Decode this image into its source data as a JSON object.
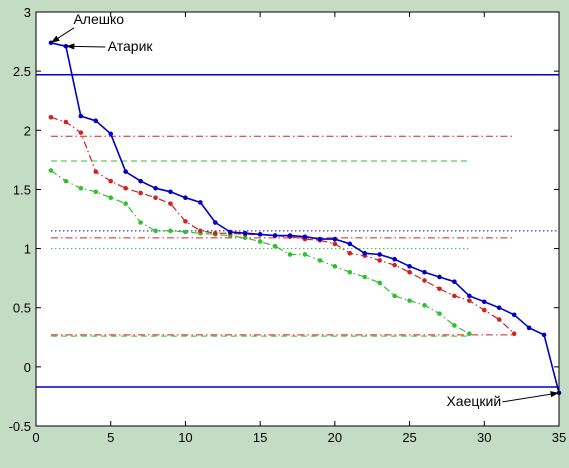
{
  "chart_data": {
    "type": "line",
    "title": "",
    "xlabel": "",
    "ylabel": "",
    "xlim": [
      0,
      35
    ],
    "ylim": [
      -0.5,
      3
    ],
    "xticks": [
      0,
      5,
      10,
      15,
      20,
      25,
      30,
      35
    ],
    "yticks": [
      -0.5,
      0,
      0.5,
      1,
      1.5,
      2,
      2.5,
      3
    ],
    "xtick_labels": [
      "0",
      "5",
      "10",
      "15",
      "20",
      "25",
      "30",
      "35"
    ],
    "ytick_labels": [
      "-0.5",
      "0",
      "0.5",
      "1",
      "1.5",
      "2",
      "2.5",
      "3"
    ],
    "grid": false,
    "series": [
      {
        "color": "#0000c8",
        "style": "solid",
        "marker": "dot",
        "x": [
          1,
          2,
          3,
          4,
          5,
          6,
          7,
          8,
          9,
          10,
          11,
          12,
          13,
          14,
          15,
          16,
          17,
          18,
          19,
          20,
          21,
          22,
          23,
          24,
          25,
          26,
          27,
          28,
          29,
          30,
          31,
          32,
          33,
          34,
          35
        ],
        "y": [
          2.74,
          2.71,
          2.12,
          2.08,
          1.97,
          1.65,
          1.57,
          1.51,
          1.48,
          1.43,
          1.39,
          1.22,
          1.14,
          1.13,
          1.12,
          1.11,
          1.11,
          1.1,
          1.08,
          1.08,
          1.04,
          0.96,
          0.95,
          0.91,
          0.85,
          0.8,
          0.76,
          0.72,
          0.6,
          0.55,
          0.5,
          0.44,
          0.33,
          0.27,
          -0.22
        ]
      },
      {
        "color": "#d42020",
        "style": "dashdot",
        "marker": "dot",
        "x": [
          1,
          2,
          3,
          4,
          5,
          6,
          7,
          8,
          9,
          10,
          11,
          12,
          13,
          14,
          15,
          16,
          17,
          18,
          19,
          20,
          21,
          22,
          23,
          24,
          25,
          26,
          27,
          28,
          29,
          30,
          31,
          32
        ],
        "y": [
          2.11,
          2.07,
          1.98,
          1.65,
          1.57,
          1.51,
          1.47,
          1.43,
          1.38,
          1.23,
          1.15,
          1.13,
          1.13,
          1.12,
          1.12,
          1.11,
          1.1,
          1.08,
          1.07,
          1.04,
          0.96,
          0.94,
          0.9,
          0.86,
          0.8,
          0.73,
          0.66,
          0.6,
          0.56,
          0.48,
          0.4,
          0.28
        ]
      },
      {
        "color": "#30c030",
        "style": "dashdot",
        "marker": "dot",
        "x": [
          1,
          2,
          3,
          4,
          5,
          6,
          7,
          8,
          9,
          10,
          11,
          12,
          13,
          14,
          15,
          16,
          17,
          18,
          19,
          20,
          21,
          22,
          23,
          24,
          25,
          26,
          27,
          28,
          29
        ],
        "y": [
          1.66,
          1.57,
          1.51,
          1.48,
          1.43,
          1.38,
          1.22,
          1.15,
          1.15,
          1.14,
          1.13,
          1.12,
          1.11,
          1.09,
          1.06,
          1.02,
          0.95,
          0.95,
          0.9,
          0.85,
          0.8,
          0.76,
          0.71,
          0.6,
          0.56,
          0.52,
          0.45,
          0.35,
          0.28
        ]
      }
    ],
    "reference_lines": [
      {
        "y": 2.47,
        "x": [
          0,
          35
        ],
        "color": "#0000c8",
        "style": "solid"
      },
      {
        "y": -0.17,
        "x": [
          0,
          35
        ],
        "color": "#0000c8",
        "style": "solid"
      },
      {
        "y": 1.15,
        "x": [
          1,
          35
        ],
        "color": "#0000c8",
        "style": "dotted"
      },
      {
        "y": 1.95,
        "x": [
          1,
          32
        ],
        "color": "#d42020",
        "style": "dashdot"
      },
      {
        "y": 1.09,
        "x": [
          1,
          32
        ],
        "color": "#d42020",
        "style": "dashdot"
      },
      {
        "y": 0.27,
        "x": [
          1,
          32
        ],
        "color": "#d42020",
        "style": "dashdot"
      },
      {
        "y": 1.74,
        "x": [
          1,
          29
        ],
        "color": "#30c030",
        "style": "dashed"
      },
      {
        "y": 1.0,
        "x": [
          1,
          29
        ],
        "color": "#30c030",
        "style": "dotted"
      },
      {
        "y": 0.26,
        "x": [
          1,
          29
        ],
        "color": "#30c030",
        "style": "dashed"
      }
    ],
    "annotations": [
      {
        "text": "Алешко",
        "target": [
          1,
          2.74
        ],
        "label_at": [
          4.2,
          2.9
        ]
      },
      {
        "text": "Атарик",
        "target": [
          2,
          2.71
        ],
        "label_at": [
          6.3,
          2.67
        ]
      },
      {
        "text": "Хаецкий",
        "target": [
          35,
          -0.22
        ],
        "label_at": [
          29.3,
          -0.33
        ]
      }
    ]
  }
}
